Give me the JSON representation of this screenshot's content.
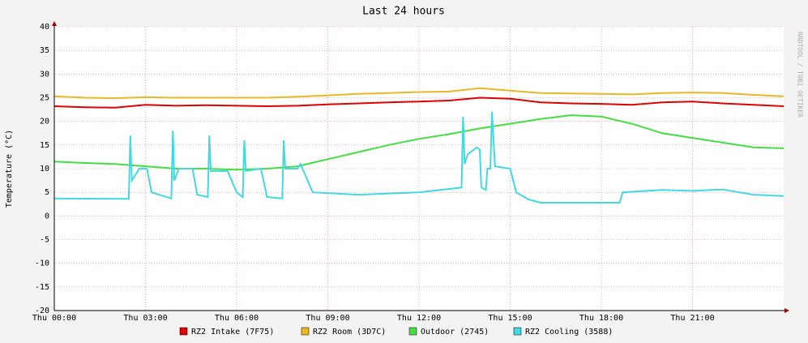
{
  "chart_data": {
    "type": "line",
    "title": "Last 24 hours",
    "y_label": "Temperature (°C)",
    "side_text": "RRDTOOL / TOBI OETIKER",
    "x": [
      0,
      1,
      2,
      3,
      4,
      5,
      6,
      7,
      8,
      9,
      10,
      11,
      12,
      13,
      14,
      15,
      16,
      17,
      18,
      19,
      20,
      21,
      22,
      23,
      24
    ],
    "xlim": [
      0,
      24
    ],
    "xticks": [
      {
        "value": 0,
        "label": "Thu 00:00"
      },
      {
        "value": 3,
        "label": "Thu 03:00"
      },
      {
        "value": 6,
        "label": "Thu 06:00"
      },
      {
        "value": 9,
        "label": "Thu 09:00"
      },
      {
        "value": 12,
        "label": "Thu 12:00"
      },
      {
        "value": 15,
        "label": "Thu 15:00"
      },
      {
        "value": 18,
        "label": "Thu 18:00"
      },
      {
        "value": 21,
        "label": "Thu 21:00"
      }
    ],
    "ylim": [
      -20,
      40
    ],
    "yticks": [
      -20,
      -15,
      -10,
      -5,
      0,
      5,
      10,
      15,
      20,
      25,
      30,
      35,
      40
    ],
    "grid": true,
    "series": [
      {
        "name": "RZ2 Intake (7F75)",
        "color": "#dd0000",
        "values": [
          23.2,
          23,
          22.9,
          23.5,
          23.3,
          23.4,
          23.3,
          23.2,
          23.3,
          23.6,
          23.8,
          24,
          24.2,
          24.4,
          25,
          24.8,
          24,
          23.8,
          23.7,
          23.5,
          24,
          24.2,
          23.8,
          23.5,
          23.2
        ]
      },
      {
        "name": "RZ2 Room (3D7C)",
        "color": "#e8b828",
        "values": [
          25.3,
          25,
          24.9,
          25.1,
          25,
          25,
          25,
          25,
          25.2,
          25.5,
          25.8,
          26,
          26.2,
          26.3,
          27,
          26.5,
          26,
          25.9,
          25.8,
          25.7,
          26,
          26.1,
          26,
          25.6,
          25.3
        ]
      },
      {
        "name": "Outdoor (2745)",
        "color": "#44dd44",
        "values": [
          11.5,
          11.2,
          11,
          10.5,
          10,
          10,
          9.8,
          10,
          10.5,
          12,
          13.5,
          15,
          16.3,
          17.3,
          18.5,
          19.5,
          20.5,
          21.3,
          21,
          19.5,
          17.5,
          16.5,
          15.5,
          14.5,
          14.3
        ]
      },
      {
        "name": "RZ2 Cooling (3588)",
        "color": "#44d8e0",
        "x": [
          0,
          2.45,
          2.5,
          2.55,
          2.8,
          3.05,
          3.2,
          3.85,
          3.9,
          3.95,
          4.1,
          4.55,
          4.7,
          5.05,
          5.1,
          5.15,
          5.7,
          6.0,
          6.2,
          6.25,
          6.3,
          6.8,
          7.0,
          7.5,
          7.55,
          7.6,
          8.0,
          8.1,
          8.5,
          10,
          12,
          13.4,
          13.45,
          13.5,
          13.6,
          13.9,
          14.0,
          14.05,
          14.2,
          14.25,
          14.35,
          14.4,
          14.5,
          15.0,
          15.2,
          15.6,
          16.0,
          18.6,
          18.7,
          20,
          21,
          22,
          23,
          24
        ],
        "values": [
          3.7,
          3.6,
          17,
          7.5,
          10,
          10,
          5,
          3.7,
          18,
          7.5,
          10,
          10,
          4.5,
          4,
          17,
          9.5,
          9.5,
          5,
          4,
          16,
          9.5,
          10,
          4,
          3.7,
          16,
          10,
          10,
          11,
          5,
          4.5,
          5,
          6,
          21,
          11,
          13,
          14.5,
          14,
          6,
          5.5,
          10,
          10,
          22,
          10.5,
          10,
          5,
          3.5,
          2.8,
          2.8,
          5,
          5.5,
          5.3,
          5.6,
          4.5,
          4.2
        ]
      }
    ]
  }
}
